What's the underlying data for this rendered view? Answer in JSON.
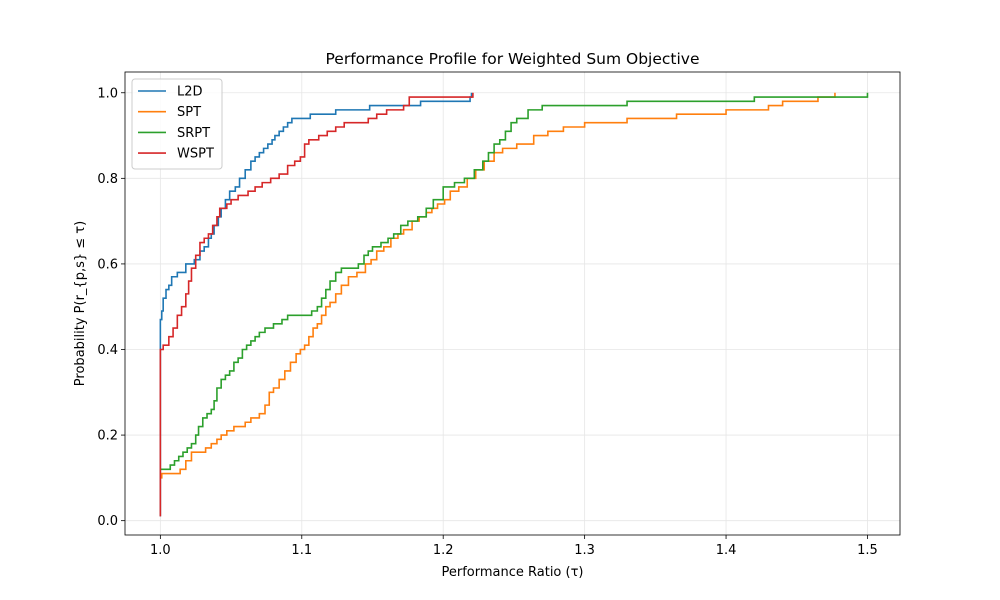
{
  "chart_data": {
    "type": "line",
    "title": "Performance Profile for Weighted Sum Objective",
    "xlabel": "Performance Ratio (τ)",
    "ylabel": "Probability P(r_{p,s} ≤ τ)",
    "xlim": [
      0.975,
      1.523
    ],
    "ylim": [
      -0.0335,
      1.0485
    ],
    "xticks": [
      1.0,
      1.1,
      1.2,
      1.3,
      1.4,
      1.5
    ],
    "xtick_labels": [
      "1.0",
      "1.1",
      "1.2",
      "1.3",
      "1.4",
      "1.5"
    ],
    "yticks": [
      0.0,
      0.2,
      0.4,
      0.6,
      0.8,
      1.0
    ],
    "ytick_labels": [
      "0.0",
      "0.2",
      "0.4",
      "0.6",
      "0.8",
      "1.0"
    ],
    "grid": true,
    "legend_position": "top-left",
    "step": "post",
    "series": [
      {
        "name": "L2D",
        "color": "#1f77b4",
        "x": [
          1.0,
          1.0,
          1.001,
          1.002,
          1.004,
          1.006,
          1.008,
          1.012,
          1.018,
          1.024,
          1.028,
          1.031,
          1.034,
          1.036,
          1.038,
          1.041,
          1.043,
          1.046,
          1.049,
          1.053,
          1.056,
          1.06,
          1.064,
          1.067,
          1.07,
          1.073,
          1.076,
          1.079,
          1.081,
          1.084,
          1.087,
          1.09,
          1.093,
          1.096,
          1.1,
          1.106,
          1.114,
          1.124,
          1.134,
          1.148,
          1.168,
          1.184,
          1.19,
          1.219,
          1.22
        ],
        "y": [
          0.01,
          0.47,
          0.49,
          0.52,
          0.54,
          0.55,
          0.57,
          0.58,
          0.6,
          0.61,
          0.63,
          0.64,
          0.66,
          0.67,
          0.69,
          0.71,
          0.73,
          0.75,
          0.77,
          0.78,
          0.8,
          0.82,
          0.84,
          0.85,
          0.86,
          0.87,
          0.88,
          0.89,
          0.9,
          0.91,
          0.92,
          0.93,
          0.94,
          0.94,
          0.94,
          0.95,
          0.95,
          0.96,
          0.96,
          0.97,
          0.97,
          0.98,
          0.98,
          0.99,
          1.0
        ]
      },
      {
        "name": "SPT",
        "color": "#ff7f0e",
        "x": [
          1.0,
          1.001,
          1.014,
          1.018,
          1.022,
          1.032,
          1.036,
          1.04,
          1.043,
          1.047,
          1.052,
          1.06,
          1.064,
          1.07,
          1.074,
          1.077,
          1.08,
          1.084,
          1.088,
          1.092,
          1.096,
          1.099,
          1.102,
          1.105,
          1.108,
          1.111,
          1.114,
          1.117,
          1.12,
          1.124,
          1.128,
          1.133,
          1.139,
          1.145,
          1.149,
          1.153,
          1.158,
          1.163,
          1.168,
          1.172,
          1.178,
          1.183,
          1.188,
          1.192,
          1.196,
          1.201,
          1.205,
          1.211,
          1.217,
          1.223,
          1.229,
          1.236,
          1.242,
          1.252,
          1.264,
          1.274,
          1.285,
          1.3,
          1.33,
          1.365,
          1.4,
          1.43,
          1.44,
          1.46,
          1.465,
          1.477
        ],
        "y": [
          0.1,
          0.11,
          0.12,
          0.14,
          0.16,
          0.17,
          0.18,
          0.19,
          0.2,
          0.21,
          0.22,
          0.23,
          0.24,
          0.25,
          0.27,
          0.3,
          0.31,
          0.33,
          0.35,
          0.37,
          0.39,
          0.4,
          0.41,
          0.43,
          0.45,
          0.46,
          0.48,
          0.5,
          0.51,
          0.53,
          0.55,
          0.57,
          0.58,
          0.6,
          0.61,
          0.63,
          0.64,
          0.66,
          0.67,
          0.68,
          0.7,
          0.71,
          0.72,
          0.73,
          0.74,
          0.75,
          0.77,
          0.78,
          0.8,
          0.82,
          0.84,
          0.86,
          0.87,
          0.88,
          0.9,
          0.91,
          0.92,
          0.93,
          0.94,
          0.95,
          0.96,
          0.97,
          0.98,
          0.98,
          0.99,
          1.0
        ]
      },
      {
        "name": "SRPT",
        "color": "#2ca02c",
        "x": [
          1.0,
          1.001,
          1.007,
          1.01,
          1.013,
          1.016,
          1.019,
          1.022,
          1.025,
          1.027,
          1.03,
          1.033,
          1.036,
          1.038,
          1.04,
          1.043,
          1.046,
          1.049,
          1.052,
          1.055,
          1.058,
          1.061,
          1.064,
          1.067,
          1.07,
          1.074,
          1.08,
          1.086,
          1.09,
          1.1,
          1.107,
          1.111,
          1.114,
          1.117,
          1.12,
          1.124,
          1.128,
          1.133,
          1.14,
          1.144,
          1.147,
          1.15,
          1.156,
          1.161,
          1.165,
          1.17,
          1.175,
          1.182,
          1.188,
          1.193,
          1.2,
          1.204,
          1.208,
          1.215,
          1.222,
          1.228,
          1.232,
          1.236,
          1.24,
          1.244,
          1.248,
          1.252,
          1.26,
          1.27,
          1.3,
          1.33,
          1.36,
          1.38,
          1.42,
          1.5
        ],
        "y": [
          0.12,
          0.12,
          0.13,
          0.14,
          0.15,
          0.16,
          0.17,
          0.18,
          0.2,
          0.22,
          0.24,
          0.25,
          0.26,
          0.28,
          0.31,
          0.33,
          0.34,
          0.35,
          0.37,
          0.38,
          0.4,
          0.41,
          0.42,
          0.43,
          0.44,
          0.45,
          0.46,
          0.47,
          0.48,
          0.48,
          0.49,
          0.5,
          0.52,
          0.54,
          0.56,
          0.58,
          0.59,
          0.59,
          0.6,
          0.62,
          0.63,
          0.64,
          0.65,
          0.66,
          0.67,
          0.69,
          0.7,
          0.71,
          0.73,
          0.75,
          0.78,
          0.78,
          0.79,
          0.8,
          0.82,
          0.84,
          0.86,
          0.88,
          0.89,
          0.91,
          0.93,
          0.94,
          0.96,
          0.97,
          0.97,
          0.98,
          0.98,
          0.98,
          0.99,
          1.0
        ]
      },
      {
        "name": "WSPT",
        "color": "#d62728",
        "x": [
          1.0,
          1.0,
          1.002,
          1.006,
          1.009,
          1.012,
          1.015,
          1.018,
          1.02,
          1.022,
          1.025,
          1.028,
          1.031,
          1.034,
          1.037,
          1.04,
          1.042,
          1.044,
          1.047,
          1.05,
          1.055,
          1.062,
          1.067,
          1.072,
          1.078,
          1.084,
          1.09,
          1.095,
          1.099,
          1.102,
          1.105,
          1.108,
          1.112,
          1.118,
          1.124,
          1.13,
          1.147,
          1.153,
          1.16,
          1.172,
          1.176,
          1.2,
          1.221
        ],
        "y": [
          0.01,
          0.4,
          0.41,
          0.43,
          0.45,
          0.48,
          0.5,
          0.53,
          0.56,
          0.59,
          0.62,
          0.65,
          0.66,
          0.67,
          0.69,
          0.71,
          0.73,
          0.73,
          0.74,
          0.75,
          0.76,
          0.77,
          0.78,
          0.79,
          0.8,
          0.81,
          0.83,
          0.84,
          0.85,
          0.88,
          0.89,
          0.89,
          0.9,
          0.91,
          0.92,
          0.93,
          0.94,
          0.95,
          0.96,
          0.97,
          0.99,
          0.99,
          1.0
        ]
      }
    ]
  }
}
